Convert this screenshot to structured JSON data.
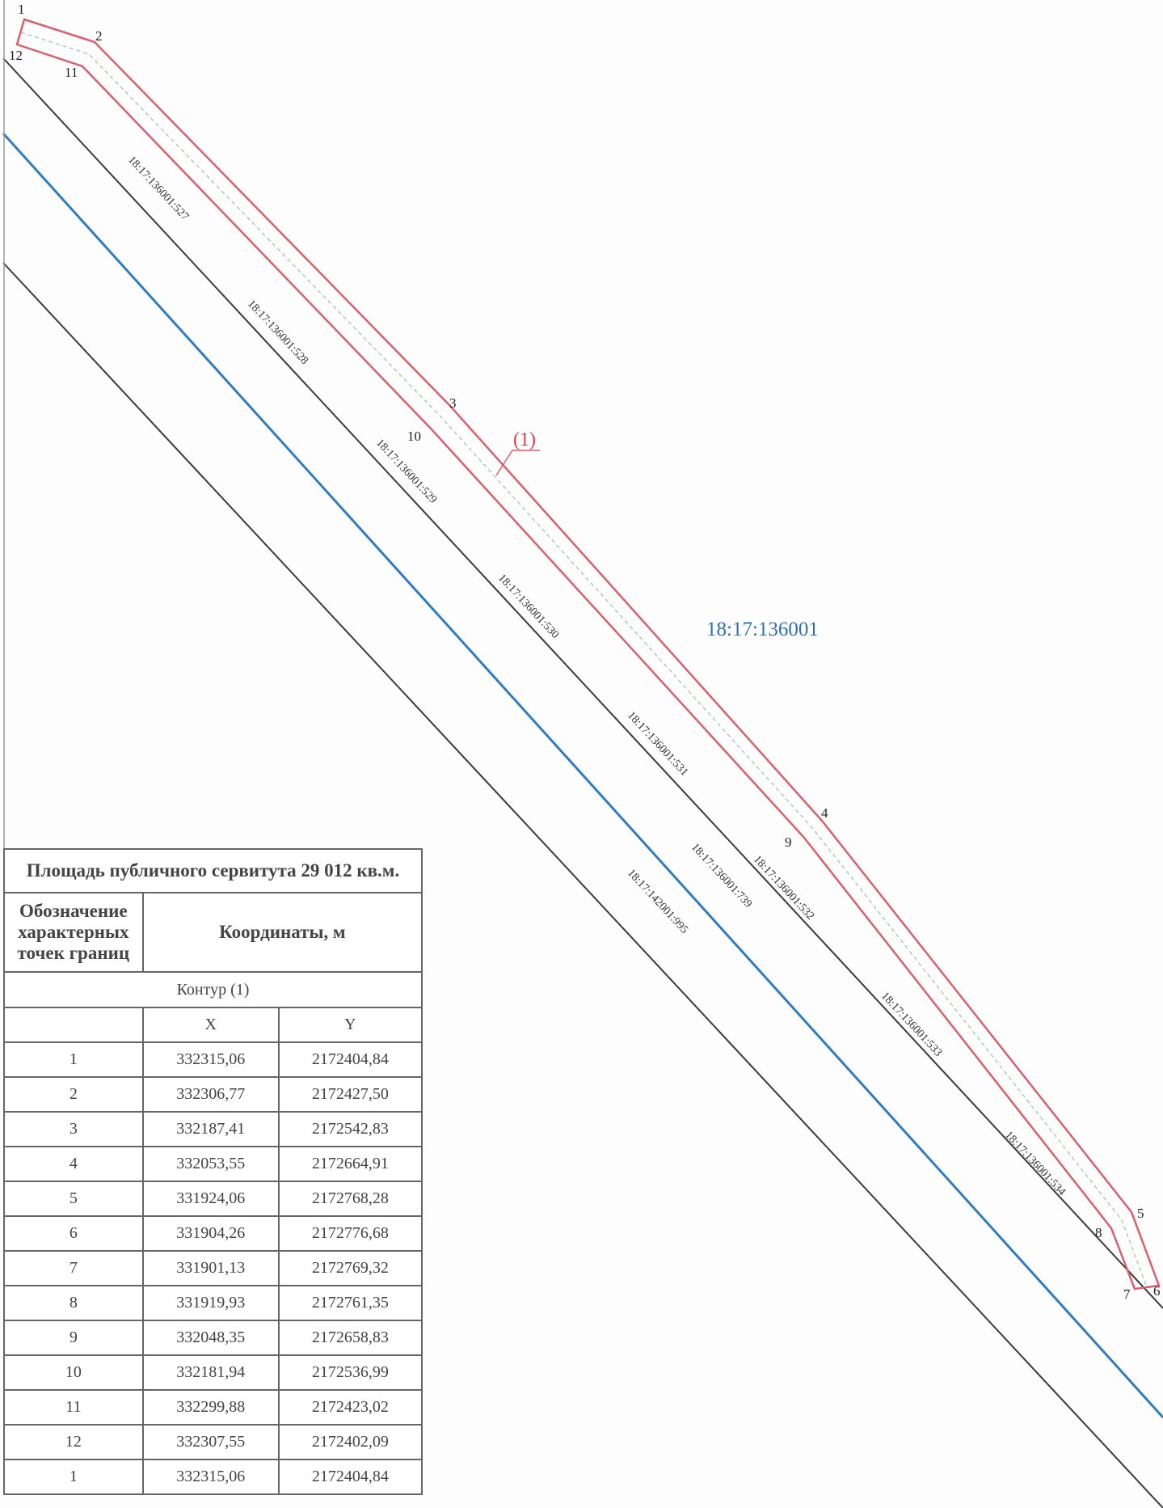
{
  "map": {
    "quarter_label": "18:17:136001",
    "contour_label": "(1)",
    "parcel_labels": [
      "18:17:136001:527",
      "18:17:136001:528",
      "18:17:136001:529",
      "18:17:136001:530",
      "18:17:136001:531",
      "18:17:136001:532",
      "18:17:136001:533",
      "18:17:136001:534",
      "18:17:136001:739",
      "18:17:142001:995"
    ],
    "point_labels": [
      "1",
      "2",
      "3",
      "4",
      "5",
      "6",
      "7",
      "8",
      "9",
      "10",
      "11",
      "12"
    ],
    "colors": {
      "contour": "#d9606c",
      "centerline": "#7fbf8f",
      "boundary": "#3a3a3a",
      "blue_line": "#2f7dc0",
      "quarter_text": "#2f6fae"
    }
  },
  "table": {
    "title": "Площадь публичного сервитута 29 012 кв.м.",
    "col_points_header": "Обозначение характерных точек границ",
    "col_coords_header": "Координаты, м",
    "contour_row": "Контур (1)",
    "x_header": "X",
    "y_header": "Y",
    "rows": [
      {
        "n": "1",
        "x": "332315,06",
        "y": "2172404,84"
      },
      {
        "n": "2",
        "x": "332306,77",
        "y": "2172427,50"
      },
      {
        "n": "3",
        "x": "332187,41",
        "y": "2172542,83"
      },
      {
        "n": "4",
        "x": "332053,55",
        "y": "2172664,91"
      },
      {
        "n": "5",
        "x": "331924,06",
        "y": "2172768,28"
      },
      {
        "n": "6",
        "x": "331904,26",
        "y": "2172776,68"
      },
      {
        "n": "7",
        "x": "331901,13",
        "y": "2172769,32"
      },
      {
        "n": "8",
        "x": "331919,93",
        "y": "2172761,35"
      },
      {
        "n": "9",
        "x": "332048,35",
        "y": "2172658,83"
      },
      {
        "n": "10",
        "x": "332181,94",
        "y": "2172536,99"
      },
      {
        "n": "11",
        "x": "332299,88",
        "y": "2172423,02"
      },
      {
        "n": "12",
        "x": "332307,55",
        "y": "2172402,09"
      },
      {
        "n": "1",
        "x": "332315,06",
        "y": "2172404,84"
      }
    ]
  }
}
